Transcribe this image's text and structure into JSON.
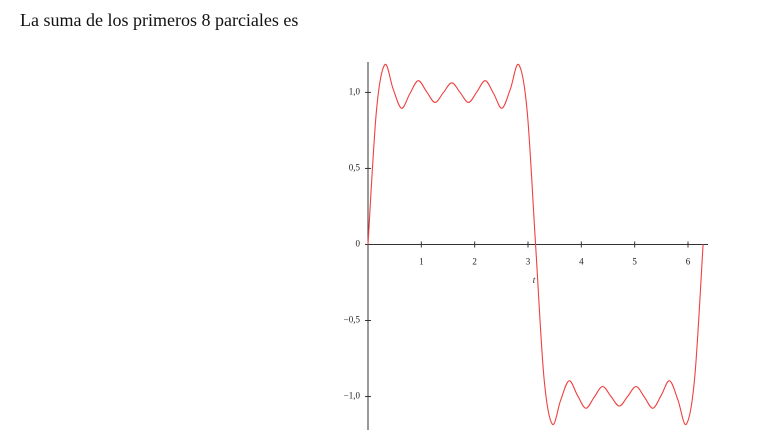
{
  "text": "La suma de los primeros 8 parciales es",
  "chart_data": {
    "type": "line",
    "xlabel": "t",
    "x": [
      0,
      0.157,
      0.314,
      0.471,
      0.628,
      0.785,
      0.942,
      1.1,
      1.257,
      1.414,
      1.571,
      1.728,
      1.885,
      2.042,
      2.199,
      2.356,
      2.513,
      2.67,
      2.827,
      2.985,
      3.142,
      3.299,
      3.456,
      3.613,
      3.77,
      3.927,
      4.084,
      4.241,
      4.398,
      4.555,
      4.712,
      4.869,
      5.027,
      5.184,
      5.341,
      5.498,
      5.655,
      5.812,
      5.969,
      6.126,
      6.283
    ],
    "series": [
      {
        "color": "#f04040",
        "values": [
          0,
          0.874,
          1.182,
          1.023,
          0.896,
          0.992,
          1.077,
          1.004,
          0.934,
          0.999,
          1.063,
          0.999,
          0.934,
          1.004,
          1.077,
          0.992,
          0.896,
          1.023,
          1.182,
          0.874,
          0,
          -0.874,
          -1.182,
          -1.023,
          -0.896,
          -0.992,
          -1.077,
          -1.004,
          -0.934,
          -0.999,
          -1.063,
          -0.999,
          -0.934,
          -1.004,
          -1.077,
          -0.992,
          -0.896,
          -1.023,
          -1.182,
          -0.874,
          0
        ]
      }
    ],
    "xlim": [
      0,
      6.3
    ],
    "ylim": [
      -1.22,
      1.2
    ],
    "xticks": [
      1,
      2,
      3,
      4,
      5,
      6
    ],
    "yticks": [
      {
        "value": 1,
        "label": "1,0"
      },
      {
        "value": 0.5,
        "label": "0,5"
      },
      0,
      {
        "value": -0.5,
        "label": "−0,5"
      },
      {
        "value": -1,
        "label": "−1,0"
      }
    ]
  }
}
